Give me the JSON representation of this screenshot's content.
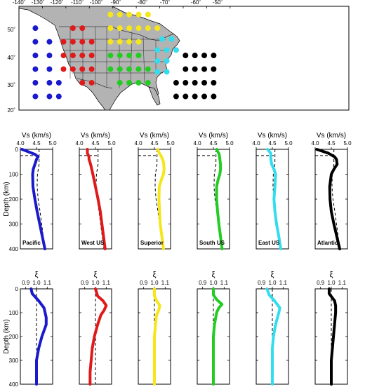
{
  "map": {
    "lon_ticks": [
      "-140˚",
      "-130˚",
      "-120˚",
      "-110˚",
      "-100˚",
      "-90˚",
      "-80˚",
      "-70˚",
      "-60˚",
      "-50˚"
    ],
    "lat_ticks": [
      "50˚",
      "40˚",
      "30˚",
      "20˚"
    ],
    "regions": [
      {
        "name": "Pacific",
        "color": "#1a1acc",
        "points": [
          [
            -133,
            50
          ],
          [
            -133,
            45
          ],
          [
            -133,
            40
          ],
          [
            -133,
            35
          ],
          [
            -133,
            30
          ],
          [
            -133,
            25
          ],
          [
            -127,
            45
          ],
          [
            -127,
            40
          ],
          [
            -127,
            35
          ],
          [
            -127,
            30
          ],
          [
            -127,
            25
          ],
          [
            -123,
            30
          ],
          [
            -123,
            25
          ]
        ]
      },
      {
        "name": "West US",
        "color": "#e01a1a",
        "points": [
          [
            -117,
            50
          ],
          [
            -117,
            45
          ],
          [
            -117,
            40
          ],
          [
            -117,
            35
          ],
          [
            -121,
            45
          ],
          [
            -121,
            40
          ],
          [
            -121,
            35
          ],
          [
            -113,
            50
          ],
          [
            -113,
            45
          ],
          [
            -113,
            40
          ],
          [
            -113,
            35
          ],
          [
            -109,
            45
          ],
          [
            -109,
            40
          ],
          [
            -109,
            35
          ],
          [
            -113,
            30
          ],
          [
            -109,
            30
          ]
        ]
      },
      {
        "name": "Superior",
        "color": "#f5e61a",
        "points": [
          [
            -101,
            55
          ],
          [
            -97,
            55
          ],
          [
            -93,
            55
          ],
          [
            -89,
            55
          ],
          [
            -85,
            55
          ],
          [
            -101,
            50
          ],
          [
            -97,
            50
          ],
          [
            -93,
            50
          ],
          [
            -89,
            50
          ],
          [
            -85,
            50
          ],
          [
            -81,
            50
          ],
          [
            -101,
            45
          ],
          [
            -97,
            45
          ],
          [
            -93,
            45
          ],
          [
            -89,
            45
          ]
        ]
      },
      {
        "name": "South US",
        "color": "#22cc22",
        "points": [
          [
            -101,
            40
          ],
          [
            -97,
            40
          ],
          [
            -93,
            40
          ],
          [
            -89,
            40
          ],
          [
            -101,
            35
          ],
          [
            -97,
            35
          ],
          [
            -93,
            35
          ],
          [
            -89,
            35
          ],
          [
            -85,
            35
          ],
          [
            -97,
            30
          ],
          [
            -93,
            30
          ],
          [
            -89,
            30
          ],
          [
            -85,
            30
          ]
        ]
      },
      {
        "name": "East US",
        "color": "#33ddee",
        "points": [
          [
            -79,
            46
          ],
          [
            -75,
            46
          ],
          [
            -81,
            42
          ],
          [
            -77,
            42
          ],
          [
            -73,
            42
          ],
          [
            -81,
            38
          ],
          [
            -77,
            38
          ],
          [
            -81,
            34
          ],
          [
            -77,
            34
          ]
        ]
      },
      {
        "name": "Atlantic",
        "color": "#000000",
        "points": [
          [
            -69,
            40
          ],
          [
            -65,
            40
          ],
          [
            -61,
            40
          ],
          [
            -57,
            40
          ],
          [
            -69,
            35
          ],
          [
            -65,
            35
          ],
          [
            -61,
            35
          ],
          [
            -57,
            35
          ],
          [
            -73,
            30
          ],
          [
            -69,
            30
          ],
          [
            -65,
            30
          ],
          [
            -61,
            30
          ],
          [
            -57,
            30
          ],
          [
            -73,
            25
          ],
          [
            -69,
            25
          ],
          [
            -65,
            25
          ],
          [
            -61,
            25
          ],
          [
            -57,
            25
          ]
        ]
      }
    ]
  },
  "vs_panels": {
    "title": "Vs (km/s)",
    "x_ticks": [
      "4.0",
      "4.5",
      "5.0"
    ],
    "xlim": [
      4.0,
      5.0
    ],
    "ylabel": "Depth (km)",
    "y_ticks": [
      "0",
      "100",
      "200",
      "300",
      "400"
    ],
    "ylim": [
      0,
      400
    ]
  },
  "xi_panels": {
    "title": "ξ",
    "x_ticks": [
      "0.9",
      "1.0",
      "1.1"
    ],
    "xlim": [
      0.85,
      1.15
    ],
    "ylabel": "Depth (km)",
    "y_ticks": [
      "0",
      "100",
      "200",
      "300",
      "400"
    ],
    "ylim": [
      0,
      400
    ]
  },
  "chart_data": [
    {
      "type": "line",
      "title": "Vs (km/s)",
      "ylabel": "Depth (km)",
      "xlim": [
        4.0,
        5.0
      ],
      "ylim": [
        0,
        400
      ],
      "reference": {
        "depth": [
          0,
          25,
          25,
          60,
          100,
          150,
          200,
          250,
          300,
          350,
          400
        ],
        "vs": [
          4.58,
          4.58,
          4.58,
          4.58,
          4.53,
          4.52,
          4.55,
          4.61,
          4.66,
          4.71,
          4.76
        ]
      },
      "panels": [
        {
          "name": "Pacific",
          "color": "#1a1acc",
          "depth": [
            0,
            10,
            20,
            30,
            40,
            60,
            80,
            100,
            150,
            200,
            250,
            300,
            350,
            400
          ],
          "vs": [
            4.05,
            4.25,
            4.45,
            4.55,
            4.5,
            4.45,
            4.4,
            4.38,
            4.39,
            4.45,
            4.52,
            4.6,
            4.68,
            4.76
          ]
        },
        {
          "name": "West US",
          "color": "#e01a1a",
          "depth": [
            0,
            15,
            30,
            40,
            60,
            100,
            150,
            200,
            250,
            300,
            350,
            400
          ],
          "vs": [
            4.25,
            4.25,
            4.3,
            4.3,
            4.35,
            4.42,
            4.5,
            4.58,
            4.65,
            4.7,
            4.75,
            4.8
          ]
        },
        {
          "name": "Superior",
          "color": "#f5e61a",
          "depth": [
            0,
            15,
            30,
            50,
            80,
            100,
            120,
            150,
            200,
            250,
            300,
            350,
            400
          ],
          "vs": [
            4.6,
            4.65,
            4.72,
            4.78,
            4.8,
            4.78,
            4.72,
            4.65,
            4.64,
            4.66,
            4.68,
            4.73,
            4.78
          ]
        },
        {
          "name": "South US",
          "color": "#22cc22",
          "depth": [
            0,
            20,
            40,
            60,
            80,
            100,
            120,
            150,
            200,
            250,
            300,
            350,
            400
          ],
          "vs": [
            4.6,
            4.68,
            4.7,
            4.72,
            4.72,
            4.7,
            4.65,
            4.6,
            4.6,
            4.63,
            4.67,
            4.72,
            4.77
          ]
        },
        {
          "name": "East US",
          "color": "#33ddee",
          "depth": [
            0,
            15,
            30,
            45,
            60,
            80,
            100,
            150,
            200,
            250,
            300,
            350,
            400
          ],
          "vs": [
            4.35,
            4.45,
            4.45,
            4.46,
            4.48,
            4.55,
            4.6,
            4.58,
            4.55,
            4.58,
            4.63,
            4.7,
            4.76
          ]
        },
        {
          "name": "Atlantic",
          "color": "#000000",
          "depth": [
            0,
            15,
            30,
            40,
            60,
            80,
            100,
            150,
            200,
            250,
            300,
            350,
            400
          ],
          "vs": [
            4.05,
            4.4,
            4.6,
            4.66,
            4.68,
            4.58,
            4.5,
            4.45,
            4.46,
            4.5,
            4.58,
            4.67,
            4.76
          ]
        }
      ]
    },
    {
      "type": "line",
      "title": "ξ",
      "ylabel": "Depth (km)",
      "xlim": [
        0.85,
        1.15
      ],
      "ylim": [
        0,
        400
      ],
      "reference": {
        "depth": [
          0,
          400
        ],
        "xi": [
          1.0,
          1.0
        ]
      },
      "panels": [
        {
          "name": "Pacific",
          "color": "#1a1acc",
          "depth": [
            0,
            20,
            50,
            80,
            120,
            150,
            200,
            250,
            300,
            350,
            400
          ],
          "xi": [
            0.95,
            0.96,
            1.02,
            1.07,
            1.09,
            1.09,
            1.05,
            1.02,
            1.0,
            1.0,
            1.0
          ]
        },
        {
          "name": "West US",
          "color": "#e01a1a",
          "depth": [
            0,
            30,
            50,
            70,
            90,
            110,
            150,
            200,
            250,
            300,
            350,
            400
          ],
          "xi": [
            1.0,
            1.02,
            1.07,
            1.1,
            1.08,
            1.05,
            1.02,
            0.99,
            0.97,
            0.96,
            0.95,
            0.95
          ]
        },
        {
          "name": "Superior",
          "color": "#f5e61a",
          "depth": [
            0,
            30,
            50,
            70,
            90,
            110,
            150,
            200,
            250,
            300,
            350,
            400
          ],
          "xi": [
            1.0,
            1.0,
            1.02,
            1.05,
            1.04,
            1.02,
            1.01,
            1.0,
            1.0,
            1.0,
            1.0,
            1.0
          ]
        },
        {
          "name": "South US",
          "color": "#22cc22",
          "depth": [
            0,
            25,
            45,
            65,
            80,
            100,
            150,
            200,
            250,
            300,
            350,
            400
          ],
          "xi": [
            1.0,
            1.0,
            1.03,
            1.08,
            1.05,
            1.03,
            1.01,
            1.0,
            1.0,
            1.0,
            1.0,
            1.0
          ]
        },
        {
          "name": "East US",
          "color": "#33ddee",
          "depth": [
            0,
            25,
            50,
            80,
            100,
            150,
            200,
            250,
            300,
            350,
            400
          ],
          "xi": [
            0.95,
            0.97,
            1.02,
            1.07,
            1.06,
            1.03,
            1.01,
            1.0,
            1.0,
            1.0,
            1.0
          ]
        },
        {
          "name": "Atlantic",
          "color": "#000000",
          "depth": [
            0,
            20,
            50,
            70,
            100,
            150,
            200,
            250,
            300,
            350,
            400
          ],
          "xi": [
            0.98,
            0.98,
            1.03,
            1.04,
            1.04,
            1.03,
            1.02,
            1.01,
            1.0,
            1.0,
            1.0
          ]
        }
      ]
    }
  ]
}
